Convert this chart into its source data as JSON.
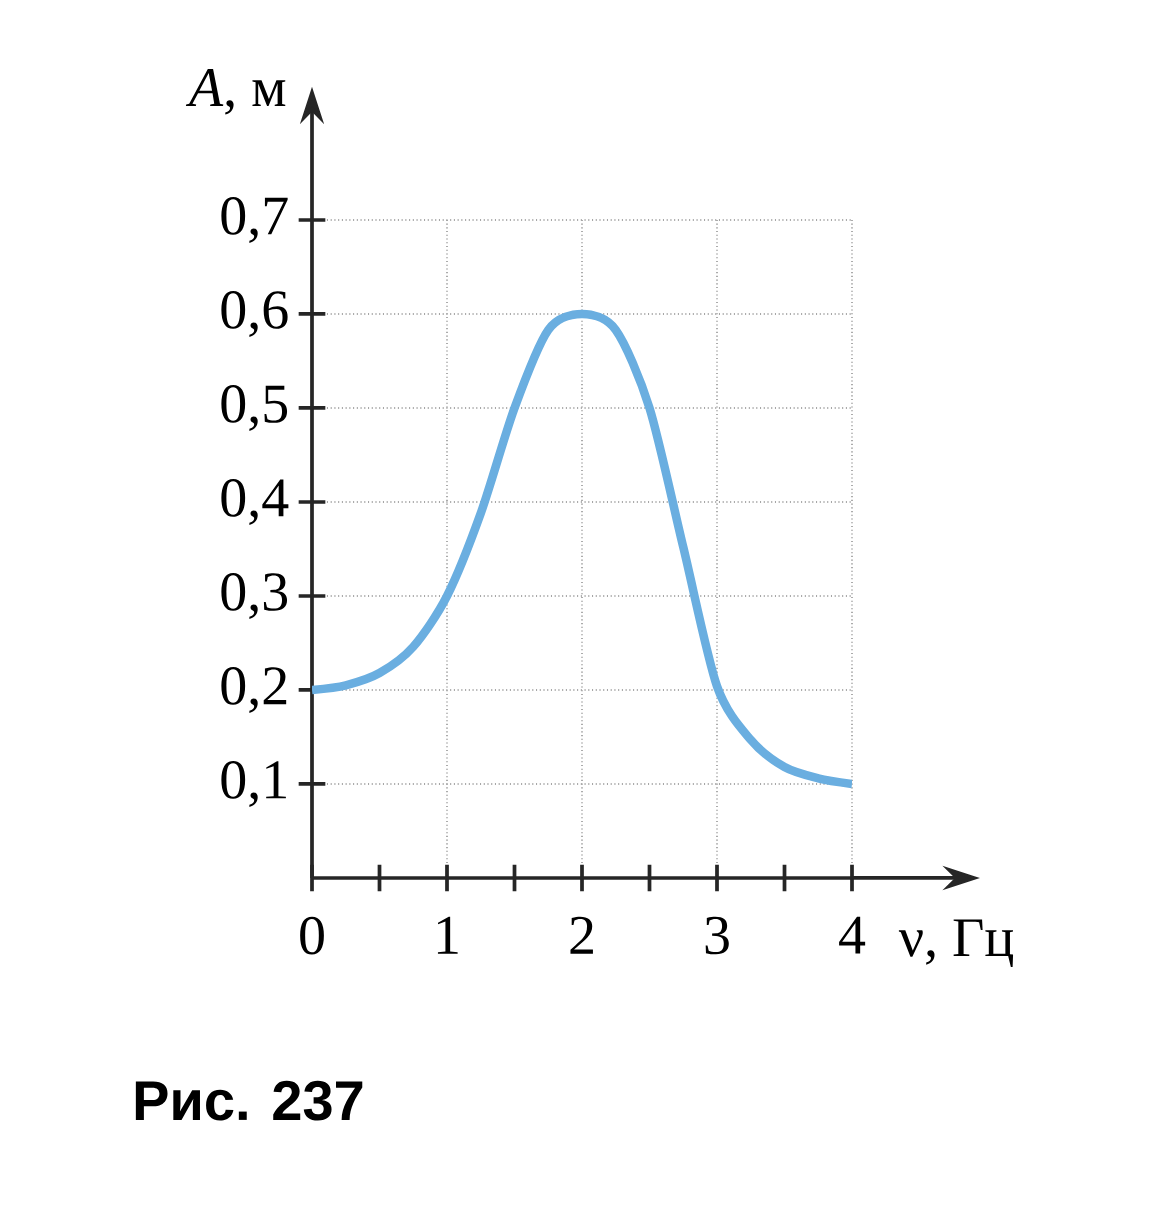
{
  "chart_data": {
    "type": "line",
    "xlabel": "ν, Гц",
    "ylabel": "*A*, м",
    "x": [
      0,
      0.25,
      0.5,
      0.75,
      1,
      1.25,
      1.5,
      1.75,
      2,
      2.25,
      2.5,
      2.75,
      3,
      3.25,
      3.5,
      3.75,
      4
    ],
    "series": [
      {
        "color": "#6aaee0",
        "values": [
          0.2,
          0.205,
          0.218,
          0.246,
          0.3,
          0.388,
          0.5,
          0.583,
          0.6,
          0.583,
          0.5,
          0.352,
          0.204,
          0.147,
          0.118,
          0.106,
          0.1
        ]
      }
    ],
    "xlim": [
      0,
      4
    ],
    "ylim": [
      0,
      0.7
    ],
    "xticks": [
      {
        "value": 0,
        "label": "0"
      },
      {
        "value": 0.5,
        "label": null
      },
      1,
      {
        "value": 1.5,
        "label": null
      },
      2,
      {
        "value": 2.5,
        "label": null
      },
      3,
      {
        "value": 3.5,
        "label": null
      },
      4
    ],
    "yticks": [
      {
        "value": 0.1,
        "label": "0,1"
      },
      {
        "value": 0.2,
        "label": "0,2"
      },
      {
        "value": 0.3,
        "label": "0,3"
      },
      {
        "value": 0.4,
        "label": "0,4"
      },
      {
        "value": 0.5,
        "label": "0,5"
      },
      {
        "value": 0.6,
        "label": "0,6"
      },
      {
        "value": 0.7,
        "label": "0,7"
      }
    ],
    "grid": true,
    "marker": "none",
    "line_style": "solid",
    "annotations": [
      "**Рис. 237**"
    ]
  }
}
